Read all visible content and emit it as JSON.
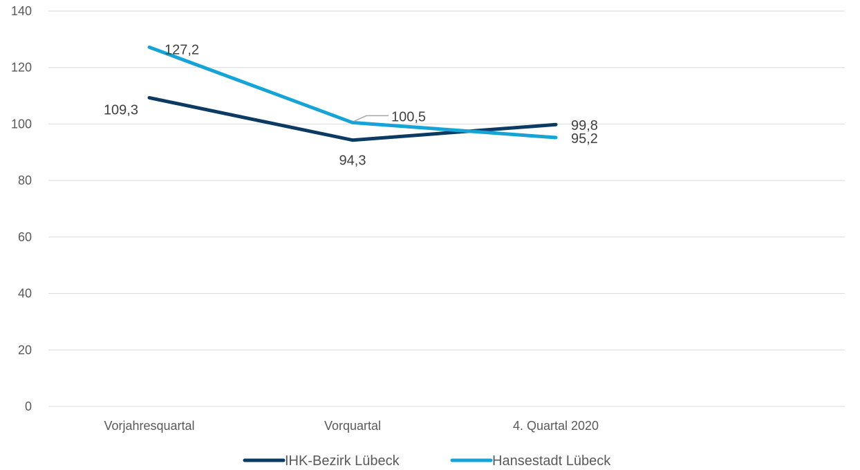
{
  "chart_data": {
    "type": "line",
    "categories": [
      "Vorjahresquartal",
      "Vorquartal",
      "4. Quartal 2020"
    ],
    "series": [
      {
        "name": "IHK-Bezirk Lübeck",
        "color": "#0b3a63",
        "values": [
          109.3,
          94.3,
          99.8
        ],
        "labels": [
          "109,3",
          "94,3",
          "99,8"
        ]
      },
      {
        "name": "Hansestadt Lübeck",
        "color": "#16a3d6",
        "values": [
          127.2,
          100.5,
          95.2
        ],
        "labels": [
          "127,2",
          "100,5",
          "95,2"
        ]
      }
    ],
    "ylim": [
      0,
      140
    ],
    "yticks": [
      "0",
      "20",
      "40",
      "60",
      "80",
      "100",
      "120",
      "140"
    ],
    "grid": true,
    "legend_position": "bottom"
  }
}
